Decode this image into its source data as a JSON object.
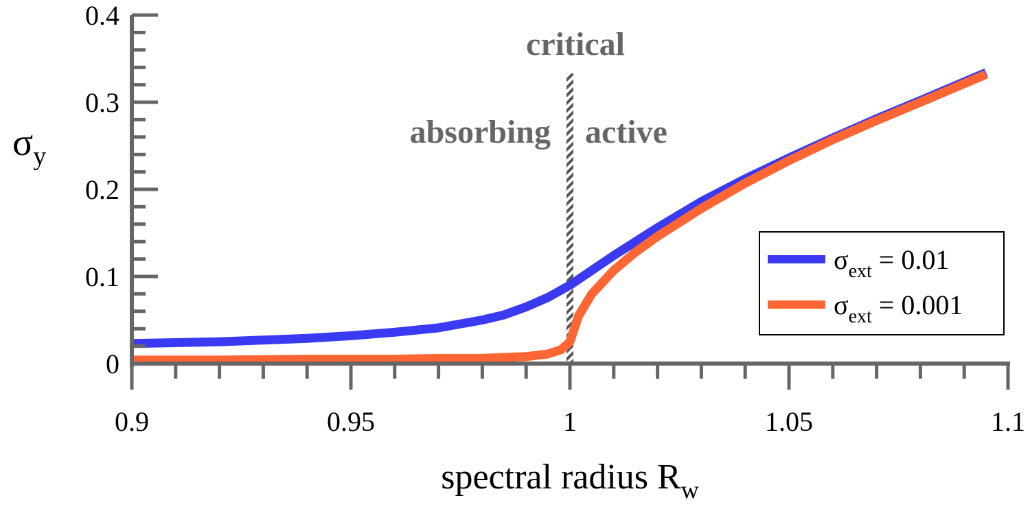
{
  "chart_data": {
    "type": "line",
    "xlabel": "spectral radius",
    "xlabel_symbol": "R",
    "xlabel_subscript": "w",
    "ylabel_symbol": "σ",
    "ylabel_subscript": "y",
    "xlim": [
      0.9,
      1.1
    ],
    "ylim": [
      0,
      0.4
    ],
    "x_ticks": [
      0.9,
      0.95,
      1.0,
      1.05,
      1.1
    ],
    "x_tick_labels": [
      "0.9",
      "0.95",
      "1",
      "1.05",
      "1.1"
    ],
    "y_ticks": [
      0,
      0.1,
      0.2,
      0.3,
      0.4
    ],
    "y_tick_labels": [
      "0",
      "0.1",
      "0.2",
      "0.3",
      "0.4"
    ],
    "grid": false,
    "legend_position": "bottom-right",
    "annotations": [
      {
        "text": "critical",
        "x": 1.0
      },
      {
        "text": "absorbing",
        "side": "left"
      },
      {
        "text": "active",
        "side": "right"
      }
    ],
    "critical_x": 1.0,
    "series": [
      {
        "legend_symbol": "σ",
        "legend_subscript": "ext",
        "legend_value": " = 0.01",
        "color": "#3a3af2",
        "x": [
          0.9,
          0.91,
          0.92,
          0.93,
          0.94,
          0.95,
          0.96,
          0.97,
          0.98,
          0.985,
          0.99,
          0.995,
          1.0,
          1.005,
          1.01,
          1.02,
          1.03,
          1.04,
          1.05,
          1.06,
          1.07,
          1.08,
          1.095
        ],
        "y": [
          0.023,
          0.024,
          0.025,
          0.027,
          0.029,
          0.032,
          0.036,
          0.041,
          0.05,
          0.056,
          0.065,
          0.076,
          0.09,
          0.107,
          0.124,
          0.156,
          0.186,
          0.212,
          0.236,
          0.259,
          0.281,
          0.302,
          0.334
        ]
      },
      {
        "legend_symbol": "σ",
        "legend_subscript": "ext",
        "legend_value": " = 0.001",
        "color": "#ff6633",
        "x": [
          0.9,
          0.92,
          0.94,
          0.96,
          0.97,
          0.98,
          0.99,
          0.995,
          0.998,
          1.0,
          1.002,
          1.005,
          1.01,
          1.015,
          1.02,
          1.03,
          1.04,
          1.05,
          1.06,
          1.07,
          1.08,
          1.095
        ],
        "y": [
          0.004,
          0.004,
          0.005,
          0.005,
          0.006,
          0.006,
          0.008,
          0.011,
          0.016,
          0.025,
          0.055,
          0.08,
          0.107,
          0.128,
          0.146,
          0.178,
          0.207,
          0.233,
          0.257,
          0.279,
          0.3,
          0.332
        ]
      }
    ]
  }
}
